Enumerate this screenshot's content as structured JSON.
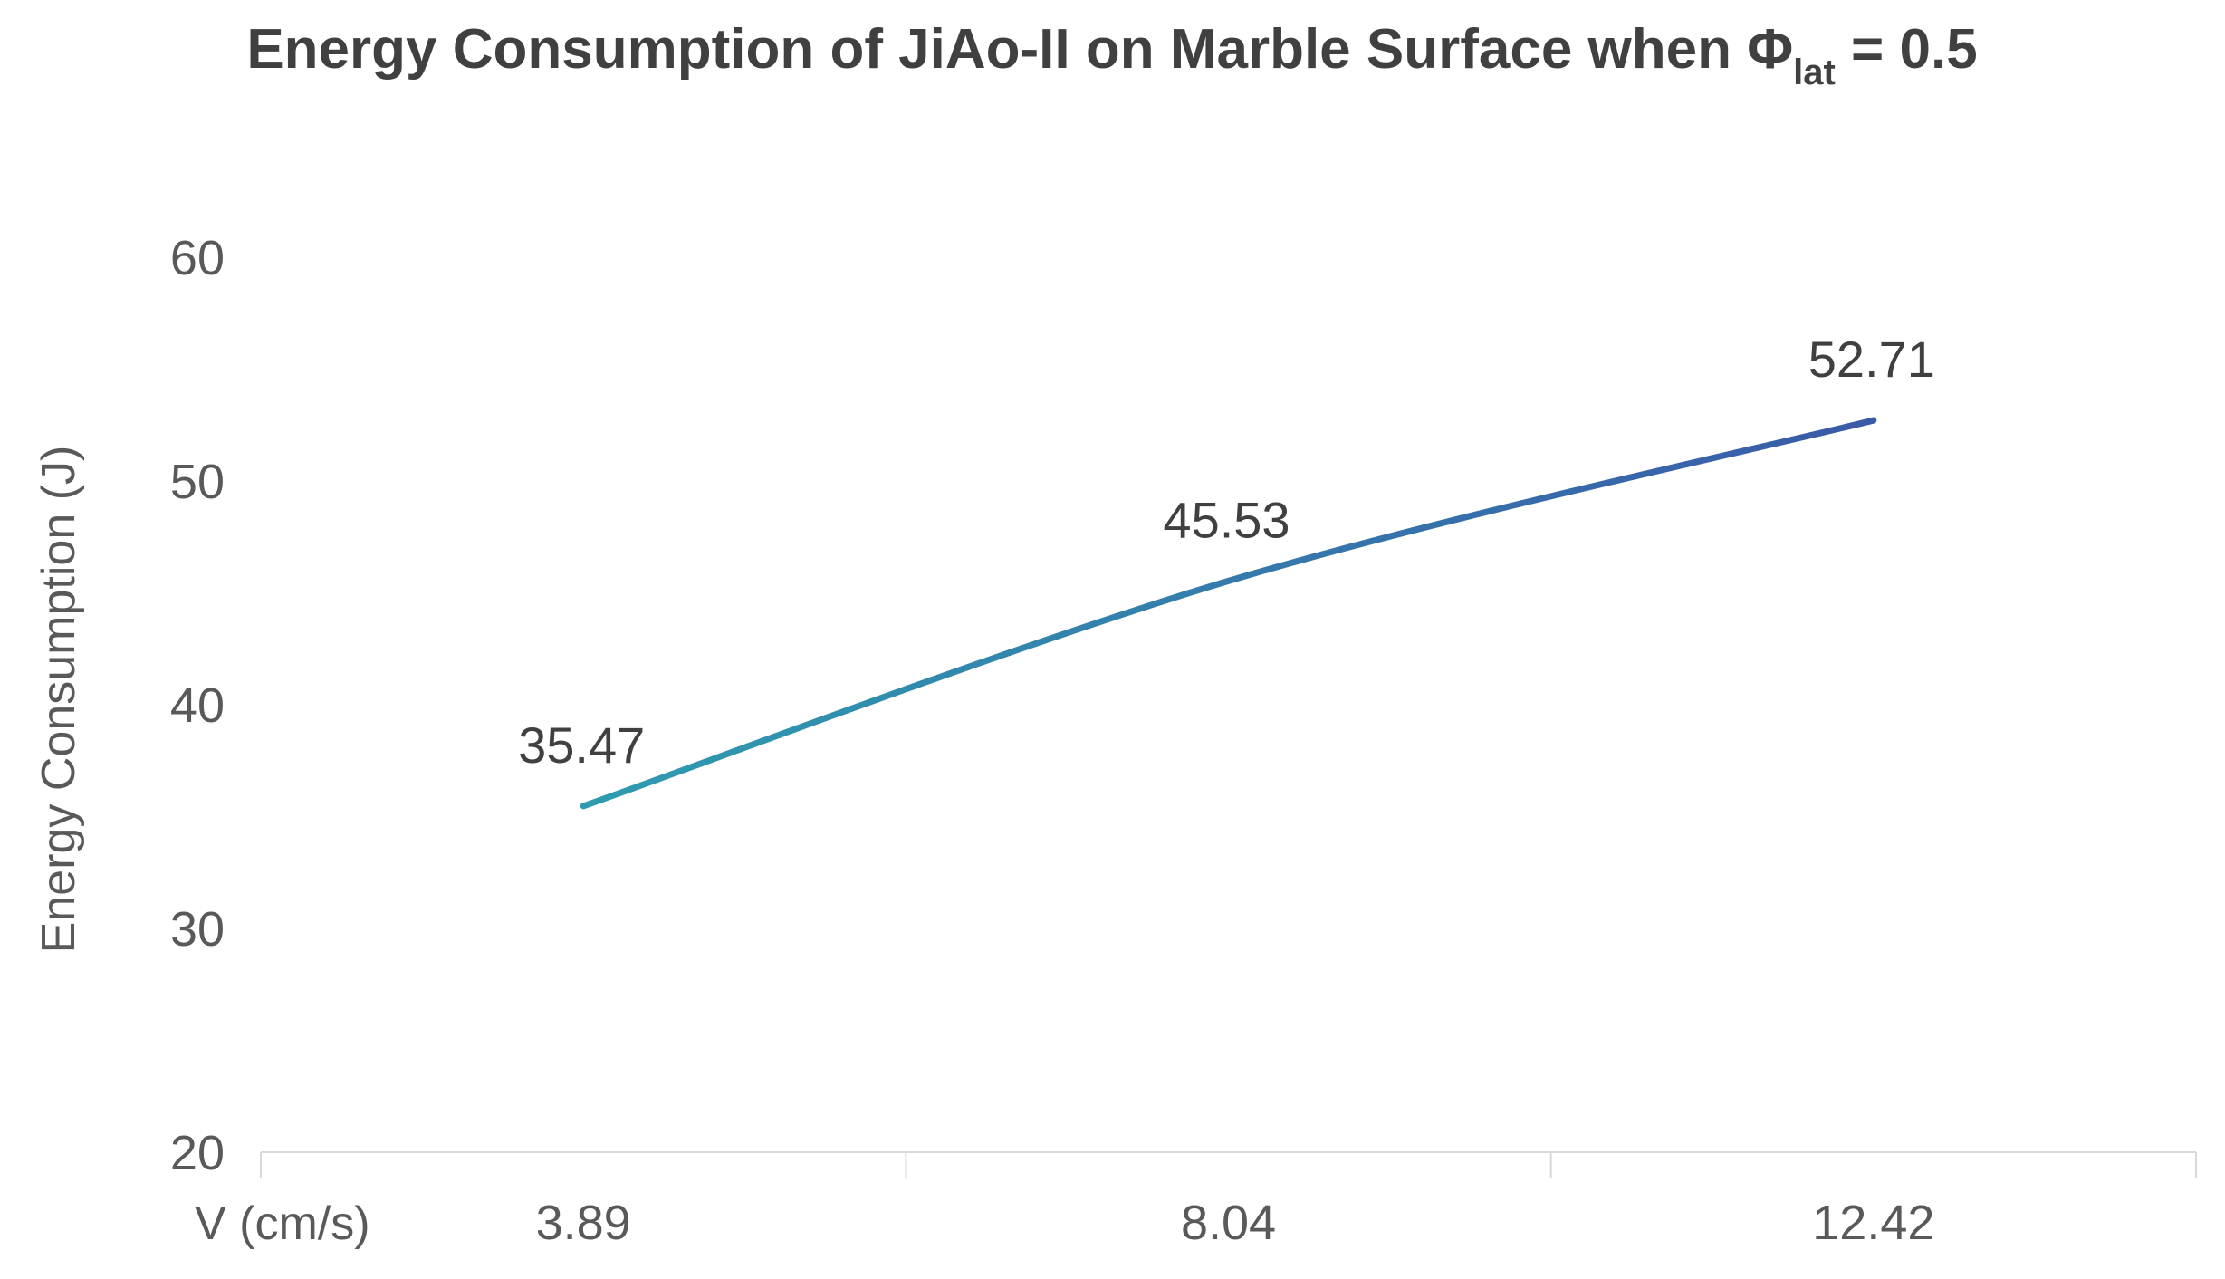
{
  "chart_data": {
    "type": "line",
    "title_main": "Energy Consumption of JiAo-II on Marble Surface when Φ",
    "title_subscript": "lat",
    "title_suffix": " = 0.5",
    "xlabel": "V (cm/s)",
    "ylabel": "Energy Consumption (J)",
    "categories": [
      "3.89",
      "8.04",
      "12.42"
    ],
    "series": [
      {
        "values": [
          35.47,
          45.53,
          52.71
        ]
      }
    ],
    "data_labels": [
      "35.47",
      "45.53",
      "52.71"
    ],
    "ylim": [
      20,
      60
    ],
    "yticks": [
      20,
      30,
      40,
      50,
      60
    ],
    "ytick_labels": [
      "20",
      "30",
      "40",
      "50",
      "60"
    ],
    "grid": false,
    "line_gradient": [
      "#2e9cb0",
      "#3a5aa8"
    ]
  }
}
